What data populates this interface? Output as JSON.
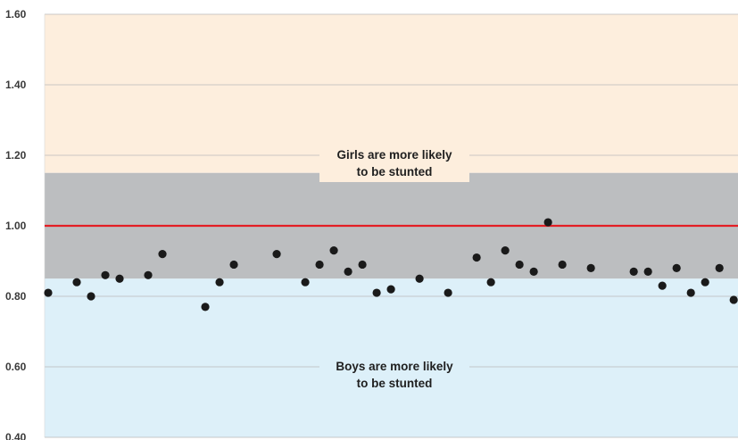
{
  "chart_data": {
    "type": "scatter",
    "title": "",
    "xlabel": "",
    "ylabel": "",
    "ylim": [
      0.4,
      1.6
    ],
    "yticks": [
      0.4,
      0.6,
      0.8,
      1.0,
      1.2,
      1.4,
      1.6
    ],
    "ytick_labels": [
      "0.40",
      "0.60",
      "0.80",
      "1.00",
      "1.20",
      "1.40",
      "1.60"
    ],
    "grid": true,
    "reference_line": {
      "value": 1.0,
      "color": "#e31e24"
    },
    "bands": [
      {
        "name": "girls",
        "from": 1.15,
        "to": 1.6,
        "color": "#fdeedd"
      },
      {
        "name": "parity",
        "from": 0.85,
        "to": 1.15,
        "color": "#bcbec0"
      },
      {
        "name": "boys",
        "from": 0.4,
        "to": 0.85,
        "color": "#ddf0f9"
      }
    ],
    "annotations": [
      {
        "band": "girls",
        "lines": [
          "Girls are more likely",
          "to be stunted"
        ]
      },
      {
        "band": "boys",
        "lines": [
          "Boys are more likely",
          "to be stunted"
        ]
      }
    ],
    "marker_color": "#1a1a1a",
    "points": [
      {
        "x": 1,
        "y": 0.81
      },
      {
        "x": 3,
        "y": 0.84
      },
      {
        "x": 4,
        "y": 0.8
      },
      {
        "x": 5,
        "y": 0.86
      },
      {
        "x": 6,
        "y": 0.85
      },
      {
        "x": 8,
        "y": 0.86
      },
      {
        "x": 9,
        "y": 0.92
      },
      {
        "x": 12,
        "y": 0.77
      },
      {
        "x": 13,
        "y": 0.84
      },
      {
        "x": 14,
        "y": 0.89
      },
      {
        "x": 17,
        "y": 0.92
      },
      {
        "x": 19,
        "y": 0.84
      },
      {
        "x": 20,
        "y": 0.89
      },
      {
        "x": 21,
        "y": 0.93
      },
      {
        "x": 22,
        "y": 0.87
      },
      {
        "x": 23,
        "y": 0.89
      },
      {
        "x": 24,
        "y": 0.81
      },
      {
        "x": 25,
        "y": 0.82
      },
      {
        "x": 27,
        "y": 0.85
      },
      {
        "x": 29,
        "y": 0.81
      },
      {
        "x": 31,
        "y": 0.91
      },
      {
        "x": 32,
        "y": 0.84
      },
      {
        "x": 33,
        "y": 0.93
      },
      {
        "x": 34,
        "y": 0.89
      },
      {
        "x": 35,
        "y": 0.87
      },
      {
        "x": 36,
        "y": 1.01
      },
      {
        "x": 37,
        "y": 0.89
      },
      {
        "x": 39,
        "y": 0.88
      },
      {
        "x": 42,
        "y": 0.87
      },
      {
        "x": 43,
        "y": 0.87
      },
      {
        "x": 44,
        "y": 0.83
      },
      {
        "x": 45,
        "y": 0.88
      },
      {
        "x": 46,
        "y": 0.81
      },
      {
        "x": 47,
        "y": 0.84
      },
      {
        "x": 48,
        "y": 0.88
      },
      {
        "x": 49,
        "y": 0.79
      }
    ],
    "xlim": [
      0.75,
      49.3
    ]
  }
}
